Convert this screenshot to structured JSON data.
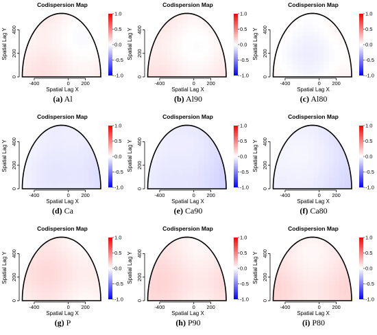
{
  "chart_data": {
    "type": "heatmap",
    "colorscale": {
      "min": -1.0,
      "max": 1.0,
      "low_color": "#0000ff",
      "mid_color": "#ffffff",
      "high_color": "#ff0000"
    },
    "colorbar_ticks": [
      "1.0",
      "0.5",
      "0.0",
      "-0.5",
      "-1.0"
    ],
    "x_ticks": [
      "-400",
      "0",
      "200"
    ],
    "y_ticks": [
      "0",
      "200",
      "400"
    ],
    "xlim": [
      -560,
      420
    ],
    "ylim": [
      0,
      560
    ],
    "panels": [
      {
        "title": "Codispersion Map",
        "xlabel": "Spatial Lag X",
        "ylabel": "Spatial Lag Y",
        "label": "(a)",
        "name": "Al",
        "approx_value": 0.05
      },
      {
        "title": "Codispersion Map",
        "xlabel": "Spatial Lag X",
        "ylabel": "Spatial Lag Y",
        "label": "(b)",
        "name": "Al90",
        "approx_value": 0.06
      },
      {
        "title": "Codispersion Map",
        "xlabel": "Spatial Lag X",
        "ylabel": "Spatial Lag Y",
        "label": "(c)",
        "name": "Al80",
        "approx_value": 0.0
      },
      {
        "title": "Codispersion Map",
        "xlabel": "Spatial Lag X",
        "ylabel": "Spatial Lag Y",
        "label": "(d)",
        "name": "Ca",
        "approx_value": -0.08
      },
      {
        "title": "Codispersion Map",
        "xlabel": "Spatial Lag X",
        "ylabel": "Spatial Lag Y",
        "label": "(e)",
        "name": "Ca90",
        "approx_value": -0.1
      },
      {
        "title": "Codispersion Map",
        "xlabel": "Spatial Lag X",
        "ylabel": "Spatial Lag Y",
        "label": "(f)",
        "name": "Ca80",
        "approx_value": -0.08
      },
      {
        "title": "Codispersion Map",
        "xlabel": "Spatial Lag X",
        "ylabel": "Spatial Lag Y",
        "label": "(g)",
        "name": "P",
        "approx_value": 0.08
      },
      {
        "title": "Codispersion Map",
        "xlabel": "Spatial Lag X",
        "ylabel": "Spatial Lag Y",
        "label": "(h)",
        "name": "P90",
        "approx_value": 0.1
      },
      {
        "title": "Codispersion Map",
        "xlabel": "Spatial Lag X",
        "ylabel": "Spatial Lag Y",
        "label": "(i)",
        "name": "P80",
        "approx_value": 0.1
      }
    ]
  }
}
